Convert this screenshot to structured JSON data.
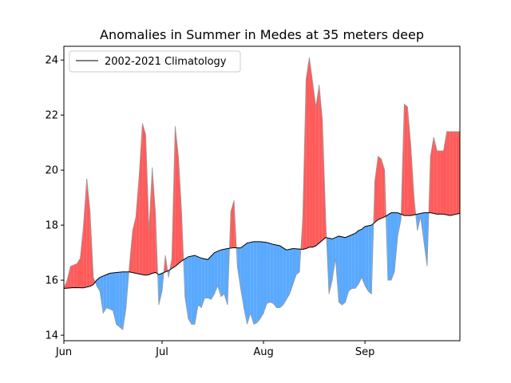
{
  "chart_data": {
    "type": "area",
    "title": "Anomalies in Summer in Medes at 35 meters deep",
    "xlabel": "",
    "ylabel": "",
    "x_domain_days": [
      0,
      121
    ],
    "ylim": [
      13.8,
      24.5
    ],
    "yticks": [
      14,
      16,
      18,
      20,
      22,
      24
    ],
    "xticks": [
      {
        "day": 0,
        "label": "Jun"
      },
      {
        "day": 30,
        "label": "Jul"
      },
      {
        "day": 61,
        "label": "Aug"
      },
      {
        "day": 92,
        "label": "Sep"
      }
    ],
    "legend": {
      "position": "top-left",
      "entries": [
        "2002-2021 Climatology"
      ]
    },
    "grid": false,
    "colors": {
      "above": "#ff5b5b",
      "below": "#59a9ff",
      "climatology": "#000000",
      "observed": "#999999"
    },
    "series": [
      {
        "name": "2002-2021 Climatology",
        "x": [
          0,
          3,
          6,
          8,
          9,
          10,
          11,
          12,
          13,
          14,
          16,
          18,
          20,
          22,
          24,
          25,
          26,
          27,
          28,
          29,
          30,
          32,
          34,
          36,
          38,
          40,
          42,
          44,
          46,
          48,
          50,
          52,
          54,
          56,
          58,
          59,
          60,
          62,
          64,
          66,
          68,
          70,
          72,
          73,
          74,
          75,
          76,
          77,
          78,
          79,
          80,
          82,
          84,
          86,
          88,
          89,
          90,
          91,
          92,
          94,
          96,
          98,
          100,
          102,
          104,
          106,
          108,
          110,
          112,
          114,
          116,
          118,
          121
        ],
        "values": [
          15.7,
          15.73,
          15.72,
          15.78,
          15.84,
          16.0,
          16.1,
          16.15,
          16.2,
          16.25,
          16.28,
          16.3,
          16.3,
          16.25,
          16.2,
          16.18,
          16.2,
          16.25,
          16.28,
          16.2,
          16.25,
          16.35,
          16.5,
          16.7,
          16.85,
          16.9,
          16.8,
          16.75,
          17.0,
          17.1,
          17.15,
          17.18,
          17.17,
          17.35,
          17.4,
          17.4,
          17.4,
          17.37,
          17.3,
          17.25,
          17.1,
          17.15,
          17.13,
          17.12,
          17.15,
          17.2,
          17.2,
          17.25,
          17.35,
          17.45,
          17.55,
          17.5,
          17.6,
          17.55,
          17.65,
          17.7,
          17.8,
          17.85,
          17.95,
          18.0,
          18.2,
          18.3,
          18.45,
          18.45,
          18.35,
          18.35,
          18.4,
          18.45,
          18.45,
          18.4,
          18.4,
          18.35,
          18.43
        ]
      },
      {
        "name": "",
        "x": [
          0,
          1,
          2,
          3,
          4,
          5,
          6,
          7,
          8,
          9,
          10,
          11,
          12,
          13,
          14,
          15,
          16,
          17,
          18,
          19,
          20,
          21,
          22,
          23,
          24,
          25,
          26,
          27,
          28,
          29,
          30,
          31,
          32,
          33,
          34,
          35,
          36,
          37,
          38,
          39,
          40,
          41,
          42,
          43,
          44,
          45,
          46,
          47,
          48,
          49,
          50,
          51,
          52,
          53,
          54,
          55,
          56,
          57,
          58,
          59,
          60,
          61,
          62,
          63,
          64,
          65,
          66,
          67,
          68,
          69,
          70,
          71,
          72,
          73,
          74,
          75,
          76,
          77,
          78,
          79,
          80,
          81,
          82,
          83,
          84,
          85,
          86,
          87,
          88,
          89,
          90,
          91,
          92,
          93,
          94,
          95,
          96,
          97,
          98,
          99,
          100,
          101,
          102,
          103,
          104,
          105,
          106,
          107,
          108,
          109,
          110,
          111,
          112,
          113,
          114,
          115,
          116,
          117,
          118,
          119,
          120,
          121
        ],
        "values": [
          15.7,
          16.0,
          16.5,
          16.55,
          16.6,
          16.8,
          18.0,
          19.7,
          18.5,
          16.1,
          15.8,
          15.6,
          14.8,
          15.0,
          14.95,
          14.9,
          14.4,
          14.3,
          14.2,
          15.0,
          16.5,
          17.8,
          18.3,
          19.8,
          21.7,
          21.3,
          17.8,
          20.1,
          18.4,
          15.1,
          15.6,
          16.9,
          16.1,
          16.8,
          21.6,
          20.5,
          18.4,
          15.4,
          14.6,
          14.4,
          14.4,
          15.1,
          15.0,
          15.35,
          15.35,
          15.3,
          15.5,
          15.8,
          15.4,
          15.5,
          15.1,
          18.5,
          18.9,
          16.5,
          15.7,
          15.0,
          14.4,
          14.8,
          14.4,
          14.45,
          14.6,
          14.8,
          15.15,
          15.2,
          15.15,
          15.0,
          15.0,
          15.1,
          15.3,
          15.5,
          15.85,
          16.2,
          16.3,
          18.3,
          23.3,
          24.1,
          23.2,
          22.3,
          23.1,
          21.8,
          18.2,
          15.5,
          16.0,
          16.8,
          15.2,
          15.1,
          15.2,
          15.6,
          15.7,
          15.7,
          15.85,
          16.1,
          15.8,
          15.6,
          15.5,
          19.6,
          20.5,
          20.4,
          20.0,
          16.0,
          16.0,
          16.3,
          17.6,
          18.2,
          22.4,
          22.3,
          20.9,
          19.0,
          17.8,
          18.3,
          17.4,
          16.5,
          20.5,
          21.2,
          20.7,
          20.7,
          20.7,
          21.4,
          21.4,
          21.4,
          21.4,
          21.4
        ]
      }
    ]
  }
}
